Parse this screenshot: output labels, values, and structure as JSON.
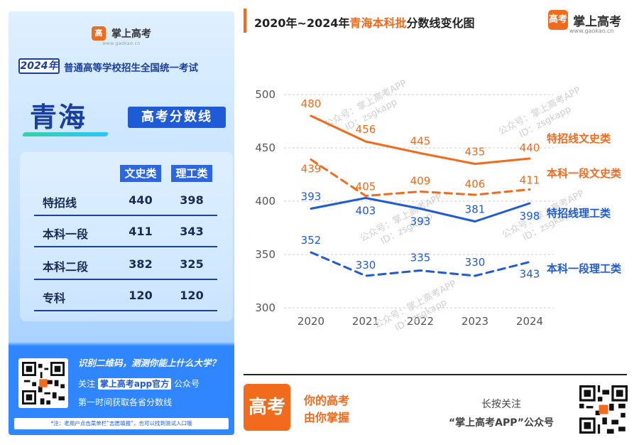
{
  "brand": {
    "name": "掌上高考",
    "url": "www.gaokao.cn",
    "logo_char": "高考"
  },
  "poster": {
    "logo_char": "高",
    "year": "2024年",
    "exam_title": "普通高等学校招生全国统一考试",
    "province": "青海",
    "tag": "高考分数线",
    "table": {
      "headers": [
        "文史类",
        "理工类"
      ],
      "rows": [
        {
          "label": "特招线",
          "arts": "440",
          "science": "398"
        },
        {
          "label": "本科一段",
          "arts": "411",
          "science": "343"
        },
        {
          "label": "本科二段",
          "arts": "382",
          "science": "325"
        },
        {
          "label": "专科",
          "arts": "120",
          "science": "120"
        }
      ]
    },
    "promo": {
      "line1": "识别二维码，测测你能上什么大学？",
      "line2_prefix": "关注",
      "line2_highlight": "掌上高考app官方",
      "line2_suffix": "公众号",
      "line3": "第一时间获取各省分数线"
    },
    "note": "*注：老用户点击菜单栏“志愿填报”，也可以找到测试入口哦"
  },
  "chart_title": {
    "prefix": "2020年~2024年",
    "highlight": "青海本科批",
    "suffix": "分数线变化图"
  },
  "watermark": {
    "line1": "公众号：掌上高考APP",
    "line2": "ID：zsgkapp"
  },
  "colors": {
    "orange": "#f26a1b",
    "blue": "#1f5bd6",
    "navy": "#1a3f9c"
  },
  "chart_data": {
    "type": "line",
    "x": [
      "2020",
      "2021",
      "2022",
      "2023",
      "2024"
    ],
    "ylim": [
      300,
      500
    ],
    "yticks": [
      300,
      350,
      400,
      450,
      500
    ],
    "grid": true,
    "series": [
      {
        "name": "特招线文史类",
        "values": [
          480,
          456,
          445,
          435,
          440
        ],
        "color": "#f26a1b",
        "dashed": false
      },
      {
        "name": "本科一段文史类",
        "values": [
          439,
          405,
          409,
          406,
          411
        ],
        "color": "#f26a1b",
        "dashed": true
      },
      {
        "name": "特招线理工类",
        "values": [
          393,
          403,
          393,
          381,
          398
        ],
        "color": "#1f5bd6",
        "dashed": false
      },
      {
        "name": "本科一段理工类",
        "values": [
          352,
          330,
          335,
          330,
          343
        ],
        "color": "#1f5bd6",
        "dashed": true
      }
    ]
  },
  "footer": {
    "logo_char": "高考",
    "slogan_line1": "你的高考",
    "slogan_line2": "由你掌握",
    "follow_line1": "长按关注",
    "follow_line2": "“掌上高考APP”公众号"
  }
}
